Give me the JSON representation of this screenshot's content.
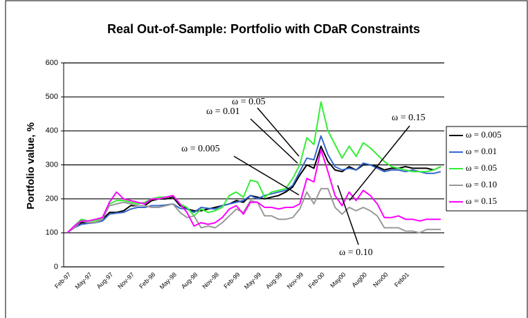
{
  "chart_data": {
    "type": "line",
    "title": "Real Out-of-Sample: Portfolio with CDaR Constraints",
    "y_label": "Portfolio value, %",
    "categories": [
      "Feb-97",
      null,
      null,
      "May-97",
      null,
      null,
      "Aug-97",
      null,
      null,
      "Nov-97",
      null,
      null,
      "Feb-98",
      null,
      null,
      "May-98",
      null,
      null,
      "Aug-98",
      null,
      null,
      "Nov-98",
      null,
      null,
      "Feb-99",
      null,
      null,
      "May-99",
      null,
      null,
      "Aug-99",
      null,
      null,
      "Nov-99",
      null,
      null,
      "Feb-00",
      null,
      null,
      "May00",
      null,
      null,
      "Aug00",
      null,
      null,
      "Nov00",
      null,
      null,
      "Feb01",
      null,
      null,
      null,
      null,
      null
    ],
    "series": [
      {
        "name": "ω = 0.005",
        "color": "#000000",
        "values": [
          100,
          115,
          130,
          130,
          130,
          140,
          160,
          160,
          165,
          180,
          180,
          180,
          195,
          200,
          200,
          205,
          180,
          170,
          165,
          165,
          170,
          175,
          180,
          185,
          195,
          190,
          210,
          205,
          200,
          205,
          210,
          220,
          235,
          270,
          300,
          290,
          355,
          310,
          285,
          280,
          295,
          285,
          300,
          300,
          295,
          285,
          290,
          290,
          295,
          290,
          290,
          290,
          285,
          295
        ]
      },
      {
        "name": "ω = 0.01",
        "color": "#3366cc",
        "values": [
          100,
          115,
          125,
          128,
          130,
          135,
          155,
          158,
          160,
          170,
          175,
          175,
          180,
          180,
          182,
          185,
          172,
          170,
          160,
          175,
          172,
          170,
          180,
          185,
          190,
          195,
          210,
          200,
          210,
          215,
          220,
          225,
          240,
          280,
          320,
          315,
          385,
          330,
          295,
          285,
          290,
          285,
          305,
          300,
          290,
          280,
          285,
          285,
          280,
          285,
          280,
          275,
          275,
          280
        ]
      },
      {
        "name": "ω = 0.05",
        "color": "#33ee33",
        "values": [
          100,
          120,
          140,
          135,
          135,
          145,
          185,
          195,
          195,
          190,
          185,
          190,
          200,
          205,
          205,
          210,
          185,
          175,
          150,
          170,
          160,
          165,
          175,
          210,
          220,
          205,
          255,
          250,
          205,
          220,
          225,
          230,
          260,
          300,
          380,
          360,
          485,
          400,
          360,
          320,
          355,
          325,
          365,
          350,
          330,
          310,
          295,
          290,
          285,
          280,
          280,
          280,
          285,
          295
        ]
      },
      {
        "name": "ω = 0.10",
        "color": "#999999",
        "values": [
          100,
          115,
          135,
          130,
          130,
          140,
          180,
          185,
          190,
          185,
          180,
          180,
          175,
          175,
          180,
          185,
          160,
          145,
          150,
          115,
          120,
          115,
          130,
          150,
          170,
          160,
          195,
          190,
          150,
          150,
          140,
          140,
          145,
          170,
          220,
          185,
          230,
          230,
          175,
          155,
          175,
          165,
          175,
          165,
          150,
          115,
          115,
          115,
          105,
          105,
          100,
          110,
          110,
          110
        ]
      },
      {
        "name": "ω = 0.15",
        "color": "#ff00ff",
        "values": [
          100,
          120,
          135,
          135,
          140,
          145,
          190,
          220,
          200,
          195,
          190,
          185,
          200,
          200,
          205,
          210,
          185,
          160,
          120,
          130,
          125,
          130,
          145,
          170,
          180,
          155,
          190,
          190,
          175,
          175,
          170,
          175,
          175,
          185,
          260,
          250,
          345,
          280,
          210,
          180,
          220,
          195,
          225,
          210,
          185,
          145,
          145,
          150,
          140,
          140,
          135,
          140,
          140,
          140
        ]
      }
    ],
    "annotations": [
      "ω = 0.05",
      "ω = 0.01",
      "ω = 0.005",
      "ω = 0.15",
      "ω = 0.10"
    ],
    "ylim": [
      0,
      600
    ],
    "yticks": [
      0,
      100,
      200,
      300,
      400,
      500,
      600
    ],
    "grid": true,
    "legend": "right"
  }
}
